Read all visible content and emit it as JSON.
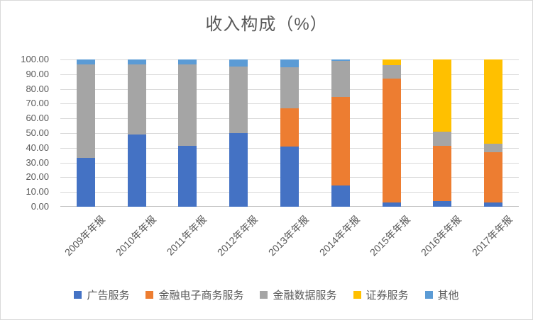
{
  "title": "收入构成（%）",
  "chart_data": {
    "type": "bar",
    "variant": "stacked-100-column",
    "title": "收入构成（%）",
    "categories": [
      "2009年年报",
      "2010年年报",
      "2011年年报",
      "2012年年报",
      "2013年年报",
      "2014年年报",
      "2015年年报",
      "2016年年报",
      "2017年年报"
    ],
    "series": [
      {
        "id": "ad-services",
        "name": "广告服务",
        "color": "#4472C4",
        "values": [
          33,
          49,
          41.5,
          50,
          41,
          14.5,
          3,
          4,
          3
        ]
      },
      {
        "id": "financial-ecommerce-services",
        "name": "金融电子商务服务",
        "color": "#ED7D31",
        "values": [
          0,
          0,
          0,
          0,
          26,
          60,
          84,
          37.5,
          34
        ]
      },
      {
        "id": "financial-data-services",
        "name": "金融数据服务",
        "color": "#A5A5A5",
        "values": [
          63.5,
          47.5,
          55,
          45,
          27.5,
          24.5,
          9,
          9.5,
          6
        ]
      },
      {
        "id": "securities-services",
        "name": "证券服务",
        "color": "#FFC000",
        "values": [
          0,
          0,
          0,
          0,
          0,
          0,
          4,
          49,
          57
        ]
      },
      {
        "id": "other",
        "name": "其他",
        "color": "#5B9BD5",
        "values": [
          3.5,
          3.5,
          3.5,
          5,
          5.5,
          1,
          0,
          0,
          0
        ]
      }
    ],
    "ylim": [
      0,
      100
    ],
    "ytick_labels": [
      "0.00",
      "10.00",
      "20.00",
      "30.00",
      "40.00",
      "50.00",
      "60.00",
      "70.00",
      "80.00",
      "90.00",
      "100.00"
    ],
    "grid": true,
    "legend_position": "bottom",
    "axis_text_color": "#595959",
    "gridline_color": "#D9D9D9"
  }
}
